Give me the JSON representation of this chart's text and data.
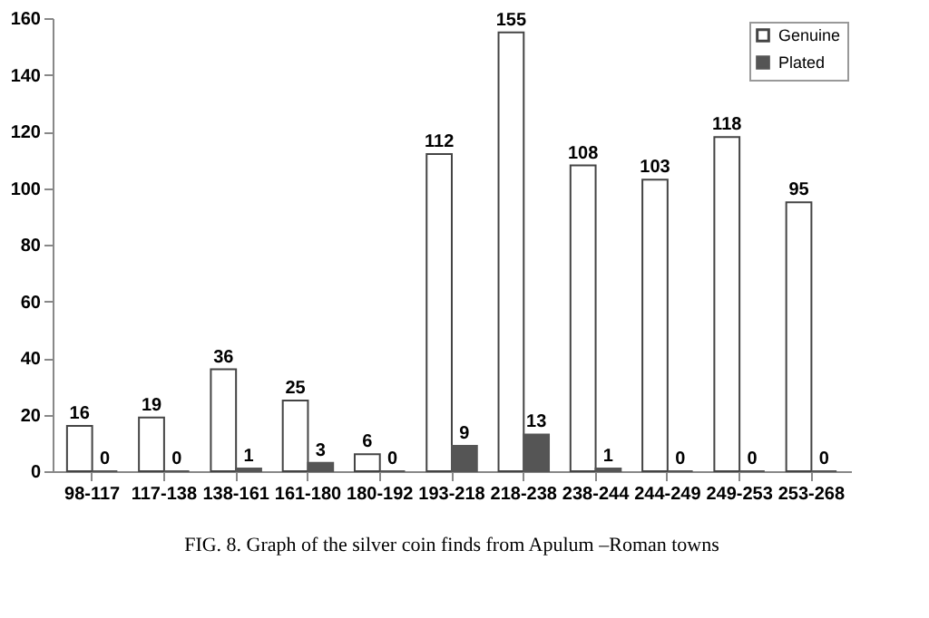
{
  "chart_data": {
    "type": "bar",
    "categories": [
      "98-117",
      "117-138",
      "138-161",
      "161-180",
      "180-192",
      "193-218",
      "218-238",
      "238-244",
      "244-249",
      "249-253",
      "253-268"
    ],
    "series": [
      {
        "name": "Genuine",
        "color": "#ffffff",
        "values": [
          16,
          19,
          36,
          25,
          6,
          112,
          155,
          108,
          103,
          118,
          95
        ]
      },
      {
        "name": "Plated",
        "color": "#555555",
        "values": [
          0,
          0,
          1,
          3,
          0,
          9,
          13,
          1,
          0,
          0,
          0
        ]
      }
    ],
    "ylim": [
      0,
      160
    ],
    "yticks": [
      0,
      20,
      40,
      60,
      80,
      100,
      120,
      140,
      160
    ],
    "data_labels": true,
    "grid": false,
    "legend": "top right",
    "annotations": [
      "FIG. 8. Graph of the silver coin finds from Apulum –Roman towns"
    ]
  }
}
